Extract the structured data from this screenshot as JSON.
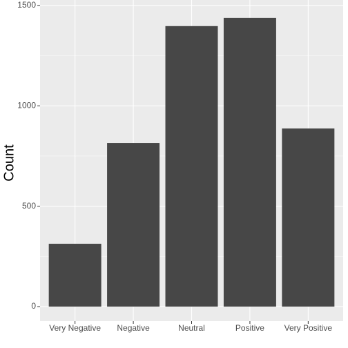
{
  "chart_data": {
    "type": "bar",
    "y_label": "Count",
    "categories": [
      "Very Negative",
      "Negative",
      "Neutral",
      "Positive",
      "Very Positive"
    ],
    "values": [
      313,
      815,
      1397,
      1438,
      887
    ],
    "color": "#474747",
    "ylim": [
      -72,
      1527
    ],
    "yticks": [
      0,
      500,
      1000,
      1500
    ],
    "grid": true
  }
}
